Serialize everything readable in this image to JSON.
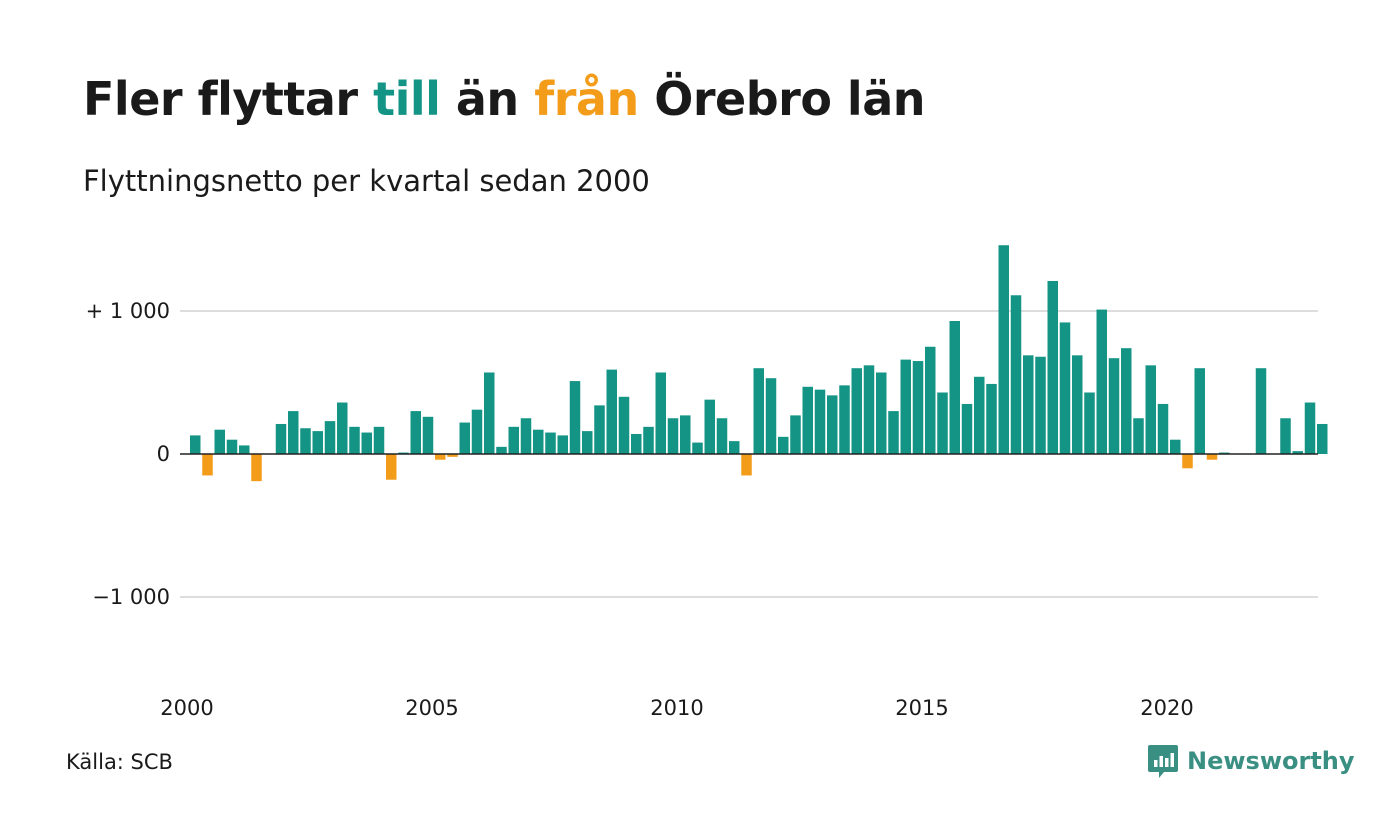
{
  "title": {
    "part1": "Fler flyttar ",
    "part2": "till",
    "part3": " än ",
    "part4": "från",
    "part5": " Örebro län"
  },
  "subtitle": "Flyttningsnetto per kvartal sedan 2000",
  "source": "Källa: SCB",
  "brand": {
    "name": "Newsworthy",
    "color": "#3a8f83"
  },
  "colors": {
    "positive": "#139485",
    "negative": "#f39c1a",
    "grid": "#dddddd",
    "axis": "#222222"
  },
  "chart_data": {
    "type": "bar",
    "title": "Fler flyttar till än från Örebro län",
    "subtitle": "Flyttningsnetto per kvartal sedan 2000",
    "xlabel": "",
    "ylabel": "",
    "x_start_year": 2000,
    "periods_per_year": 4,
    "xticks": [
      2000,
      2005,
      2010,
      2015,
      2020
    ],
    "xtick_labels": [
      "2000",
      "2005",
      "2010",
      "2015",
      "2020"
    ],
    "yticks": [
      -1000,
      0,
      1000
    ],
    "ytick_labels": [
      "−1 000",
      "0",
      "+ 1 000"
    ],
    "ylim": [
      -1600,
      1600
    ],
    "grid": true,
    "legend": "none",
    "values": [
      130,
      -150,
      170,
      100,
      60,
      -190,
      0,
      210,
      300,
      180,
      160,
      230,
      360,
      190,
      150,
      190,
      -180,
      10,
      300,
      260,
      -40,
      -20,
      220,
      310,
      570,
      50,
      190,
      250,
      170,
      150,
      130,
      510,
      160,
      340,
      590,
      400,
      140,
      190,
      570,
      250,
      270,
      80,
      380,
      250,
      90,
      -150,
      600,
      530,
      120,
      270,
      470,
      450,
      410,
      480,
      600,
      620,
      570,
      300,
      660,
      650,
      750,
      430,
      930,
      350,
      540,
      490,
      1460,
      1110,
      690,
      680,
      1210,
      920,
      690,
      430,
      1010,
      670,
      740,
      250,
      620,
      350,
      100,
      -100,
      600,
      -40,
      10,
      0,
      0,
      600,
      0,
      250,
      20,
      360,
      210
    ]
  }
}
